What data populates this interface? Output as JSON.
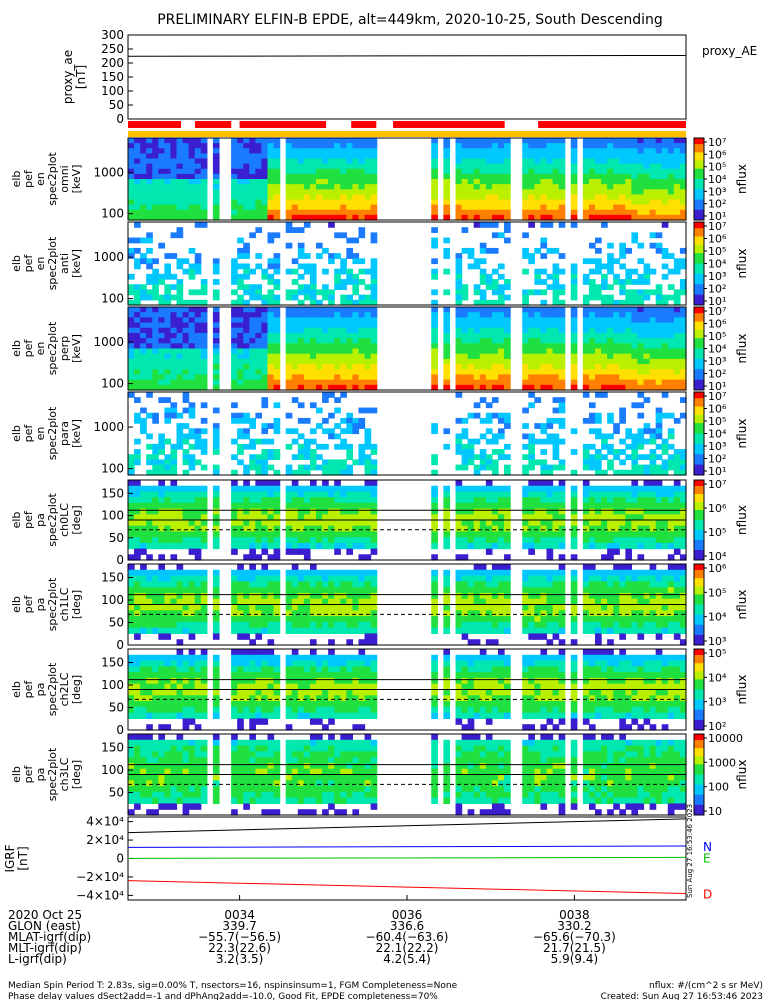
{
  "title": "PRELIMINARY ELFIN-B EPDE, alt=449km, 2020-10-25, South Descending",
  "chart_data": [
    {
      "type": "line",
      "panel": "proxy_ae",
      "ylabel_lines": [
        "proxy_ae",
        "[nT]"
      ],
      "yticks": [
        "300",
        "250",
        "200",
        "150",
        "100",
        "50",
        "0"
      ],
      "ylim": [
        0,
        300
      ],
      "legend": "proxy_AE",
      "legend_placement": "right",
      "series": [
        {
          "name": "proxy_AE",
          "x": [
            0,
            1
          ],
          "values": [
            224,
            227
          ]
        }
      ]
    },
    {
      "type": "bar",
      "panel": "data_availability",
      "segments": [
        [
          0.0,
          0.19
        ],
        [
          0.24,
          0.37
        ],
        [
          0.4,
          0.71
        ],
        [
          0.8,
          0.89
        ],
        [
          0.95,
          1.35
        ],
        [
          1.47,
          2.0
        ]
      ],
      "colors": {
        "science": "#ff0000",
        "coverage": "#ffc000"
      }
    },
    {
      "type": "heatmap",
      "panel": "en_spec_omni",
      "ylabel_lines": [
        "elb",
        "pef",
        "en",
        "spec2plot",
        "omni",
        "[keV]"
      ],
      "yticks": [
        "1000",
        "100"
      ],
      "ylog": true,
      "cbar_ticks": [
        "10⁷",
        "10⁶",
        "10⁵",
        "10⁴",
        "10³",
        "10²",
        "10¹"
      ],
      "cbar_label": "nflux"
    },
    {
      "type": "heatmap",
      "panel": "en_spec_anti",
      "ylabel_lines": [
        "elb",
        "pef",
        "en",
        "spec2plot",
        "anti",
        "[keV]"
      ],
      "yticks": [
        "1000",
        "100"
      ],
      "ylog": true,
      "cbar_ticks": [
        "10⁷",
        "10⁶",
        "10⁵",
        "10⁴",
        "10³",
        "10²",
        "10¹"
      ],
      "cbar_label": "nflux"
    },
    {
      "type": "heatmap",
      "panel": "en_spec_perp",
      "ylabel_lines": [
        "elb",
        "pef",
        "en",
        "spec2plot",
        "perp",
        "[keV]"
      ],
      "yticks": [
        "1000",
        "100"
      ],
      "ylog": true,
      "cbar_ticks": [
        "10⁷",
        "10⁶",
        "10⁵",
        "10⁴",
        "10³",
        "10²",
        "10¹"
      ],
      "cbar_label": "nflux"
    },
    {
      "type": "heatmap",
      "panel": "en_spec_para",
      "ylabel_lines": [
        "elb",
        "pef",
        "en",
        "spec2plot",
        "para",
        "[keV]"
      ],
      "yticks": [
        "1000",
        "100"
      ],
      "ylog": true,
      "cbar_ticks": [
        "10⁷",
        "10⁶",
        "10⁵",
        "10⁴",
        "10³",
        "10²",
        "10¹"
      ],
      "cbar_label": "nflux"
    },
    {
      "type": "heatmap",
      "panel": "pa_ch0",
      "ylabel_lines": [
        "elb",
        "pef",
        "pa",
        "spec2plot",
        "ch0LC",
        "[deg]"
      ],
      "yticks": [
        "150",
        "100",
        "50",
        "0"
      ],
      "ylim": [
        0,
        180
      ],
      "cbar_ticks": [
        "10⁷",
        "10⁶",
        "10⁵",
        "10⁴"
      ],
      "cbar_label": "nflux"
    },
    {
      "type": "heatmap",
      "panel": "pa_ch1",
      "ylabel_lines": [
        "elb",
        "pef",
        "pa",
        "spec2plot",
        "ch1LC",
        "[deg]"
      ],
      "yticks": [
        "150",
        "100",
        "50",
        "0"
      ],
      "ylim": [
        0,
        180
      ],
      "cbar_ticks": [
        "10⁶",
        "10⁵",
        "10⁴",
        "10³"
      ],
      "cbar_label": "nflux"
    },
    {
      "type": "heatmap",
      "panel": "pa_ch2",
      "ylabel_lines": [
        "elb",
        "pef",
        "pa",
        "spec2plot",
        "ch2LC",
        "[deg]"
      ],
      "yticks": [
        "150",
        "100",
        "50",
        "0"
      ],
      "ylim": [
        0,
        180
      ],
      "cbar_ticks": [
        "10⁵",
        "10⁴",
        "10³",
        "10²"
      ],
      "cbar_label": "nflux"
    },
    {
      "type": "heatmap",
      "panel": "pa_ch3",
      "ylabel_lines": [
        "elb",
        "pef",
        "pa",
        "spec2plot",
        "ch3LC",
        "[deg]"
      ],
      "yticks": [
        "150",
        "100",
        "50"
      ],
      "ylim": [
        0,
        180
      ],
      "cbar_ticks": [
        "10000",
        "1000",
        "100",
        "10"
      ],
      "cbar_label": "nflux"
    },
    {
      "type": "line",
      "panel": "igrf",
      "ylabel_lines": [
        "IGRF",
        "[nT]"
      ],
      "yticks": [
        "4×10⁴",
        "2×10⁴",
        "0",
        "−2×10⁴",
        "−4×10⁴"
      ],
      "ylim": [
        -45000,
        45000
      ],
      "series": [
        {
          "name": "N",
          "color": "#0000ff",
          "x": [
            0,
            1
          ],
          "values": [
            12000,
            13500
          ]
        },
        {
          "name": "E",
          "color": "#00bb00",
          "x": [
            0,
            1
          ],
          "values": [
            100,
            1200
          ]
        },
        {
          "name": "D",
          "color": "#ff0000",
          "x": [
            0,
            1
          ],
          "values": [
            -24000,
            -38000
          ]
        },
        {
          "color": "#000000",
          "x": [
            0,
            1
          ],
          "values": [
            28000,
            43000
          ]
        }
      ]
    }
  ],
  "xaxis": {
    "row_labels": [
      "2020 Oct 25",
      "GLON (east)",
      "MLAT-igrf(dip)",
      "MLT-igrf(dip)",
      "L-igrf(dip)"
    ],
    "ticks": [
      {
        "pos": 0.2,
        "vals": [
          "0034",
          "339.7",
          "−55.7(−56.5)",
          "22.3(22.6)",
          "3.2(3.5)"
        ]
      },
      {
        "pos": 0.5,
        "vals": [
          "0036",
          "336.6",
          "−60.4(−63.6)",
          "22.1(22.2)",
          "4.2(5.4)"
        ]
      },
      {
        "pos": 0.8,
        "vals": [
          "0038",
          "330.2",
          "−65.6(−70.3)",
          "21.7(21.5)",
          "5.9(9.4)"
        ]
      }
    ]
  },
  "footer": {
    "line1": "Median Spin Period T: 2.83s, sig=0.00% T, nsectors=16, nspinsinsum=1, FGM Completeness=None",
    "line2": "Phase delay values dSect2add=-1 and dPhAng2add=-10.0, Good Fit, EPDE completeness=70%",
    "right1": "nflux: #/(cm^2 s sr MeV)",
    "right2": "Created: Sun Aug 27 16:53:46 2023"
  },
  "timestamp_vertical": "Sun Aug 27 16:53:46 2023"
}
